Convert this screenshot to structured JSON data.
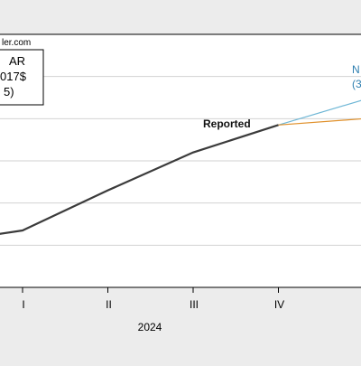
{
  "source_fragment": "ler.com",
  "legend_fragment": {
    "line1": "AR",
    "line2": "017$",
    "line3": "5)"
  },
  "chart_data": {
    "type": "line",
    "x_categories": [
      "IV_prev",
      "I",
      "II",
      "III",
      "IV",
      "I_next"
    ],
    "tick_labels": [
      "I",
      "II",
      "III",
      "IV"
    ],
    "year_label": "2024",
    "ylim": [
      0,
      6
    ],
    "series": [
      {
        "name": "Reported",
        "color": "#3b3b3b",
        "points": [
          [
            -0.5,
            1.2
          ],
          [
            0,
            1.35
          ],
          [
            1,
            2.3
          ],
          [
            2,
            3.2
          ],
          [
            3,
            3.85
          ]
        ]
      },
      {
        "name": "",
        "color": "#6fb7d6",
        "points": [
          [
            3,
            3.85
          ],
          [
            4,
            4.45
          ]
        ]
      },
      {
        "name": "",
        "color": "#e0902a",
        "points": [
          [
            3,
            3.85
          ],
          [
            4,
            4.0
          ]
        ]
      }
    ],
    "annotations": [
      {
        "text": "Reported"
      },
      {
        "text": "N"
      },
      {
        "text": "(3"
      }
    ]
  }
}
